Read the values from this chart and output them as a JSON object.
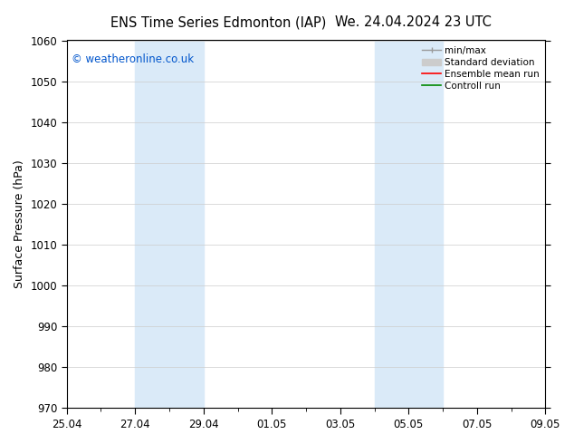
{
  "title_left": "ENS Time Series Edmonton (IAP)",
  "title_right": "We. 24.04.2024 23 UTC",
  "ylabel": "Surface Pressure (hPa)",
  "ylim": [
    970,
    1060
  ],
  "yticks": [
    970,
    980,
    990,
    1000,
    1010,
    1020,
    1030,
    1040,
    1050,
    1060
  ],
  "xlim": [
    0,
    14
  ],
  "xtick_labels": [
    "25.04",
    "27.04",
    "29.04",
    "01.05",
    "03.05",
    "05.05",
    "07.05",
    "09.05"
  ],
  "xtick_positions": [
    0,
    2,
    4,
    6,
    8,
    10,
    12,
    14
  ],
  "shade_bands": [
    {
      "x_start": 2,
      "x_end": 4
    },
    {
      "x_start": 9,
      "x_end": 11
    }
  ],
  "shade_color": "#daeaf8",
  "background_color": "#ffffff",
  "plot_bg_color": "#ffffff",
  "watermark": "© weatheronline.co.uk",
  "watermark_color": "#0055cc",
  "legend_items": [
    {
      "label": "min/max",
      "type": "minmax",
      "color": "#999999"
    },
    {
      "label": "Standard deviation",
      "type": "stdev",
      "color": "#cccccc"
    },
    {
      "label": "Ensemble mean run",
      "type": "line",
      "color": "#ff0000",
      "lw": 1.2
    },
    {
      "label": "Controll run",
      "type": "line",
      "color": "#008800",
      "lw": 1.2
    }
  ],
  "title_fontsize": 10.5,
  "tick_fontsize": 8.5,
  "ylabel_fontsize": 9,
  "grid_color": "#cccccc",
  "border_color": "#000000"
}
